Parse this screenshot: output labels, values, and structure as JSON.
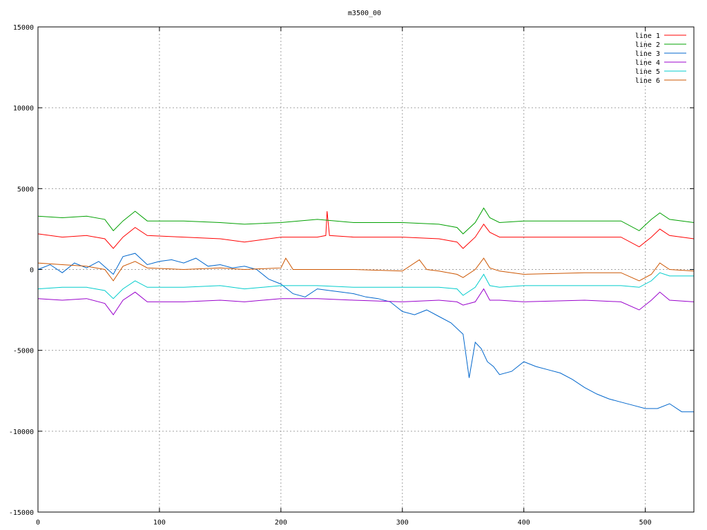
{
  "chart_data": {
    "type": "line",
    "title": "m3500_00",
    "xlabel": "",
    "ylabel": "",
    "xlim": [
      0,
      540
    ],
    "ylim": [
      -15000,
      15000
    ],
    "xticks": [
      0,
      100,
      200,
      300,
      400,
      500
    ],
    "yticks": [
      -15000,
      -10000,
      -5000,
      0,
      5000,
      10000,
      15000
    ],
    "grid": true,
    "legend_position": "top-right",
    "series": [
      {
        "name": "line 1",
        "color": "#ff0000",
        "x": [
          0,
          20,
          40,
          55,
          62,
          70,
          80,
          90,
          120,
          150,
          170,
          200,
          230,
          237,
          238,
          240,
          260,
          300,
          330,
          345,
          350,
          360,
          367,
          372,
          380,
          400,
          450,
          480,
          495,
          505,
          512,
          520,
          540
        ],
        "y": [
          2200,
          2000,
          2100,
          1900,
          1300,
          2000,
          2600,
          2100,
          2000,
          1900,
          1700,
          2000,
          2000,
          2100,
          3600,
          2100,
          2000,
          2000,
          1900,
          1700,
          1300,
          2000,
          2800,
          2300,
          2000,
          2000,
          2000,
          2000,
          1400,
          2000,
          2500,
          2100,
          1900
        ]
      },
      {
        "name": "line 2",
        "color": "#00a000",
        "x": [
          0,
          20,
          40,
          55,
          62,
          70,
          80,
          90,
          120,
          150,
          170,
          200,
          230,
          260,
          300,
          330,
          345,
          350,
          360,
          367,
          372,
          380,
          400,
          450,
          480,
          495,
          505,
          512,
          520,
          540
        ],
        "y": [
          3300,
          3200,
          3300,
          3100,
          2400,
          3000,
          3600,
          3000,
          3000,
          2900,
          2800,
          2900,
          3100,
          2900,
          2900,
          2800,
          2600,
          2200,
          2900,
          3800,
          3200,
          2900,
          3000,
          3000,
          3000,
          2400,
          3100,
          3500,
          3100,
          2900
        ]
      },
      {
        "name": "line 3",
        "color": "#0066cc",
        "x": [
          0,
          10,
          20,
          30,
          40,
          50,
          62,
          70,
          80,
          90,
          100,
          110,
          120,
          130,
          140,
          150,
          160,
          170,
          180,
          190,
          200,
          210,
          220,
          230,
          240,
          250,
          260,
          270,
          280,
          290,
          300,
          310,
          320,
          330,
          340,
          350,
          355,
          360,
          365,
          370,
          375,
          380,
          390,
          400,
          410,
          420,
          430,
          440,
          450,
          460,
          470,
          480,
          490,
          500,
          510,
          520,
          530,
          540
        ],
        "y": [
          0,
          300,
          -200,
          400,
          100,
          500,
          -300,
          800,
          1000,
          300,
          500,
          600,
          400,
          700,
          200,
          300,
          100,
          200,
          0,
          -600,
          -900,
          -1500,
          -1700,
          -1200,
          -1300,
          -1400,
          -1500,
          -1700,
          -1800,
          -2000,
          -2600,
          -2800,
          -2500,
          -2900,
          -3300,
          -4000,
          -6700,
          -4500,
          -4900,
          -5700,
          -6000,
          -6500,
          -6300,
          -5700,
          -6000,
          -6200,
          -6400,
          -6800,
          -7300,
          -7700,
          -8000,
          -8200,
          -8400,
          -8600,
          -8600,
          -8300,
          -8800,
          -8800
        ]
      },
      {
        "name": "line 4",
        "color": "#9900cc",
        "x": [
          0,
          20,
          40,
          55,
          62,
          70,
          80,
          90,
          120,
          150,
          170,
          200,
          230,
          260,
          300,
          330,
          345,
          350,
          360,
          367,
          372,
          380,
          400,
          450,
          480,
          495,
          505,
          512,
          520,
          540
        ],
        "y": [
          -1800,
          -1900,
          -1800,
          -2100,
          -2800,
          -1900,
          -1400,
          -2000,
          -2000,
          -1900,
          -2000,
          -1800,
          -1800,
          -1900,
          -2000,
          -1900,
          -2000,
          -2200,
          -2000,
          -1200,
          -1900,
          -1900,
          -2000,
          -1900,
          -2000,
          -2500,
          -1900,
          -1400,
          -1900,
          -2000
        ]
      },
      {
        "name": "line 5",
        "color": "#00cccc",
        "x": [
          0,
          20,
          40,
          55,
          62,
          70,
          80,
          90,
          120,
          150,
          170,
          200,
          230,
          260,
          300,
          330,
          345,
          350,
          360,
          367,
          372,
          380,
          400,
          450,
          480,
          495,
          505,
          512,
          520,
          540
        ],
        "y": [
          -1200,
          -1100,
          -1100,
          -1300,
          -1800,
          -1200,
          -700,
          -1100,
          -1100,
          -1000,
          -1200,
          -1000,
          -1000,
          -1100,
          -1100,
          -1100,
          -1200,
          -1600,
          -1100,
          -300,
          -1000,
          -1100,
          -1000,
          -1000,
          -1000,
          -1100,
          -700,
          -200,
          -400,
          -400
        ]
      },
      {
        "name": "line 6",
        "color": "#cc5500",
        "x": [
          0,
          20,
          40,
          55,
          62,
          70,
          80,
          90,
          120,
          150,
          170,
          200,
          204,
          210,
          230,
          260,
          300,
          314,
          320,
          330,
          345,
          350,
          360,
          367,
          372,
          380,
          400,
          450,
          480,
          495,
          505,
          512,
          520,
          540
        ],
        "y": [
          400,
          300,
          200,
          0,
          -700,
          200,
          500,
          100,
          0,
          100,
          0,
          100,
          700,
          0,
          0,
          0,
          -100,
          600,
          0,
          -100,
          -300,
          -500,
          0,
          700,
          100,
          -100,
          -300,
          -200,
          -200,
          -700,
          -300,
          400,
          0,
          -100
        ]
      }
    ]
  }
}
